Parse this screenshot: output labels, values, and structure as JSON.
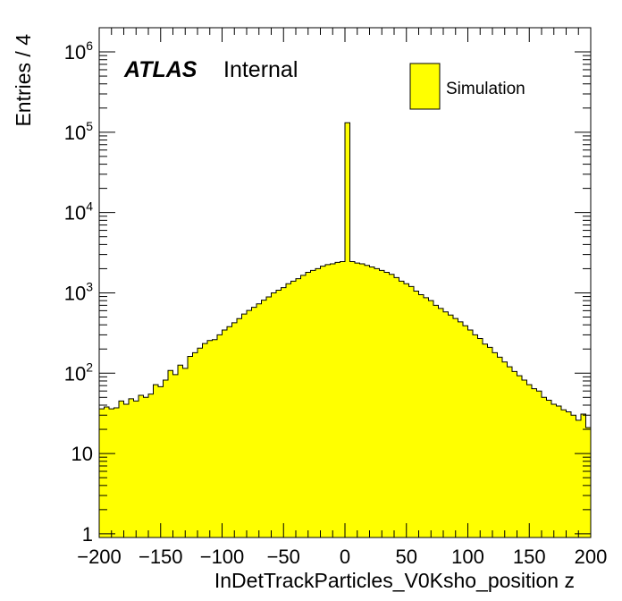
{
  "chart_data": {
    "type": "bar",
    "xlabel": "InDetTrackParticles_V0Ksho_position z",
    "ylabel": "Entries / 4",
    "xlim": [
      -200,
      200
    ],
    "ylim": [
      0.9,
      2000000
    ],
    "log_y": true,
    "bin_width": 4,
    "fill_color": "#ffff00",
    "line_color": "#000000",
    "labels": {
      "experiment": "ATLAS",
      "status": "Internal"
    },
    "legend": {
      "position": "top-right",
      "entries": [
        "Simulation"
      ]
    },
    "x_tick_labels": [
      "−200",
      "−150",
      "−100",
      "−50",
      "0",
      "50",
      "100",
      "150",
      "200"
    ],
    "x_ticks": [
      -200,
      -150,
      -100,
      -50,
      0,
      50,
      100,
      150,
      200
    ],
    "y_tick_labels": [
      {
        "value": 1,
        "base": "1",
        "exp": ""
      },
      {
        "value": 10,
        "base": "10",
        "exp": ""
      },
      {
        "value": 100,
        "base": "10",
        "exp": "2"
      },
      {
        "value": 1000,
        "base": "10",
        "exp": "3"
      },
      {
        "value": 10000,
        "base": "10",
        "exp": "4"
      },
      {
        "value": 100000,
        "base": "10",
        "exp": "5"
      },
      {
        "value": 1000000,
        "base": "10",
        "exp": "6"
      }
    ],
    "series": [
      {
        "name": "Simulation",
        "x": [
          -198,
          -194,
          -190,
          -186,
          -182,
          -178,
          -174,
          -170,
          -166,
          -162,
          -158,
          -154,
          -150,
          -146,
          -142,
          -138,
          -134,
          -130,
          -126,
          -122,
          -118,
          -114,
          -110,
          -106,
          -102,
          -98,
          -94,
          -90,
          -86,
          -82,
          -78,
          -74,
          -70,
          -66,
          -62,
          -58,
          -54,
          -50,
          -46,
          -42,
          -38,
          -34,
          -30,
          -26,
          -22,
          -18,
          -14,
          -10,
          -6,
          -2,
          2,
          6,
          10,
          14,
          18,
          22,
          26,
          30,
          34,
          38,
          42,
          46,
          50,
          54,
          58,
          62,
          66,
          70,
          74,
          78,
          82,
          86,
          90,
          94,
          98,
          102,
          106,
          110,
          114,
          118,
          122,
          126,
          130,
          134,
          138,
          142,
          146,
          150,
          154,
          158,
          162,
          166,
          170,
          174,
          178,
          182,
          186,
          190,
          194,
          198
        ],
        "values": [
          36,
          38,
          36,
          37,
          45,
          41,
          48,
          45,
          53,
          50,
          55,
          72,
          68,
          82,
          108,
          96,
          126,
          115,
          162,
          180,
          205,
          234,
          255,
          262,
          300,
          345,
          380,
          425,
          478,
          545,
          605,
          660,
          730,
          810,
          890,
          1000,
          1080,
          1160,
          1300,
          1400,
          1500,
          1650,
          1800,
          1900,
          2000,
          2150,
          2250,
          2300,
          2400,
          2450,
          131000,
          2450,
          2350,
          2300,
          2200,
          2100,
          2000,
          1900,
          1800,
          1700,
          1550,
          1400,
          1300,
          1200,
          1050,
          950,
          870,
          800,
          700,
          640,
          580,
          530,
          480,
          435,
          390,
          345,
          300,
          270,
          230,
          210,
          180,
          158,
          138,
          120,
          105,
          93,
          82,
          72,
          64,
          60,
          50,
          46,
          41,
          39,
          35,
          33,
          30,
          26,
          31,
          21
        ]
      }
    ]
  }
}
